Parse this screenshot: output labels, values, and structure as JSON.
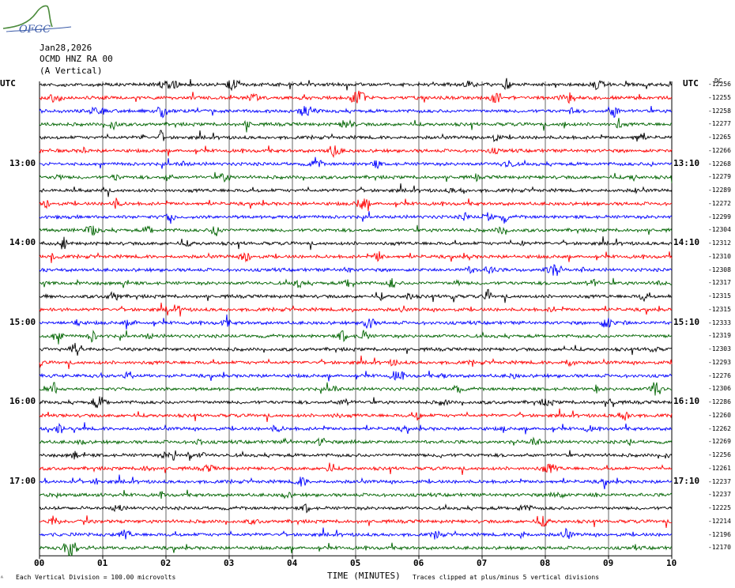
{
  "logo": {
    "text": "OFGC"
  },
  "header": {
    "date": "Jan28,2026",
    "station": "OCMD HNZ RA 00",
    "component": "(A Vertical)"
  },
  "chart_data": {
    "type": "line",
    "left_label": "UTC",
    "right_label": "UTC",
    "dc_label": "DC",
    "xlabel": "TIME (MINUTES)",
    "xlim": [
      0,
      10
    ],
    "x_ticks": [
      "00",
      "01",
      "02",
      "03",
      "04",
      "05",
      "06",
      "07",
      "08",
      "09",
      "10"
    ],
    "traces_per_hour": 6,
    "minutes_per_trace": 10,
    "left_hour_labels": [
      "13:00",
      "14:00",
      "15:00",
      "16:00",
      "17:00"
    ],
    "right_hour_labels": [
      "13:10",
      "14:10",
      "15:10",
      "16:10",
      "17:10"
    ],
    "trace_colors": [
      "#000000",
      "#ff0000",
      "#0000ff",
      "#006400"
    ],
    "trace_offsets": [
      "-12256",
      "-12255",
      "-12258",
      "-12277",
      "-12265",
      "-12266",
      "-12268",
      "-12279",
      "-12289",
      "-12272",
      "-12299",
      "-12304",
      "-12312",
      "-12310",
      "-12308",
      "-12317",
      "-12315",
      "-12315",
      "-12333",
      "-12319",
      "-12303",
      "-12293",
      "-12276",
      "-12306",
      "-12286",
      "-12260",
      "-12262",
      "-12269",
      "-12256",
      "-12261",
      "-12237",
      "-12237",
      "-12225",
      "-12214",
      "-12196",
      "-12170"
    ]
  },
  "footer": {
    "corner": "ᴬ",
    "scale_note": "Each Vertical Division =  100.00 microvolts",
    "clip_note": "Traces clipped at plus/minus 5 vertical divisions"
  }
}
